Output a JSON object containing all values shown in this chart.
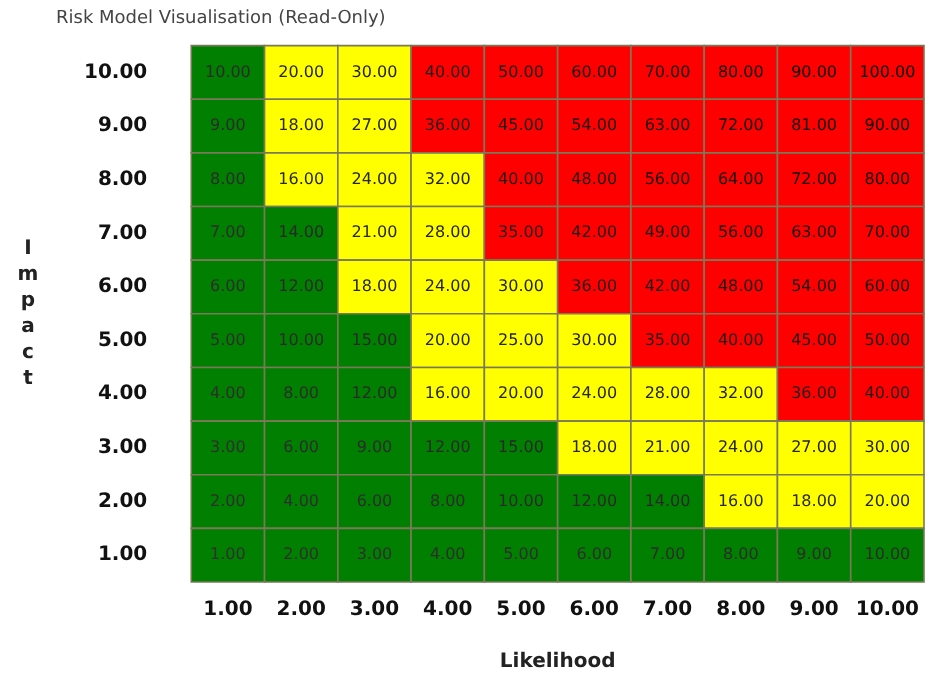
{
  "chart_data": {
    "type": "heatmap",
    "title": "Risk Model Visualisation (Read-Only)",
    "xlabel": "Likelihood",
    "ylabel": "Impact",
    "categories": [
      "1.00",
      "2.00",
      "3.00",
      "4.00",
      "5.00",
      "6.00",
      "7.00",
      "8.00",
      "9.00",
      "10.00"
    ],
    "y_categories": [
      "10.00",
      "9.00",
      "8.00",
      "7.00",
      "6.00",
      "5.00",
      "4.00",
      "3.00",
      "2.00",
      "1.00"
    ],
    "cells": [
      [
        10,
        20,
        30,
        40,
        50,
        60,
        70,
        80,
        90,
        100
      ],
      [
        9,
        18,
        27,
        36,
        45,
        54,
        63,
        72,
        81,
        90
      ],
      [
        8,
        16,
        24,
        32,
        40,
        48,
        56,
        64,
        72,
        80
      ],
      [
        7,
        14,
        21,
        28,
        35,
        42,
        49,
        56,
        63,
        70
      ],
      [
        6,
        12,
        18,
        24,
        30,
        36,
        42,
        48,
        54,
        60
      ],
      [
        5,
        10,
        15,
        20,
        25,
        30,
        35,
        40,
        45,
        50
      ],
      [
        4,
        8,
        12,
        16,
        20,
        24,
        28,
        32,
        36,
        40
      ],
      [
        3,
        6,
        9,
        12,
        15,
        18,
        21,
        24,
        27,
        30
      ],
      [
        2,
        4,
        6,
        8,
        10,
        12,
        14,
        16,
        18,
        20
      ],
      [
        1,
        2,
        3,
        4,
        5,
        6,
        7,
        8,
        9,
        10
      ]
    ],
    "cell_labels": [
      [
        "10.00",
        "20.00",
        "30.00",
        "40.00",
        "50.00",
        "60.00",
        "70.00",
        "80.00",
        "90.00",
        "100.00"
      ],
      [
        "9.00",
        "18.00",
        "27.00",
        "36.00",
        "45.00",
        "54.00",
        "63.00",
        "72.00",
        "81.00",
        "90.00"
      ],
      [
        "8.00",
        "16.00",
        "24.00",
        "32.00",
        "40.00",
        "48.00",
        "56.00",
        "64.00",
        "72.00",
        "80.00"
      ],
      [
        "7.00",
        "14.00",
        "21.00",
        "28.00",
        "35.00",
        "42.00",
        "49.00",
        "56.00",
        "63.00",
        "70.00"
      ],
      [
        "6.00",
        "12.00",
        "18.00",
        "24.00",
        "30.00",
        "36.00",
        "42.00",
        "48.00",
        "54.00",
        "60.00"
      ],
      [
        "5.00",
        "10.00",
        "15.00",
        "20.00",
        "25.00",
        "30.00",
        "35.00",
        "40.00",
        "45.00",
        "50.00"
      ],
      [
        "4.00",
        "8.00",
        "12.00",
        "16.00",
        "20.00",
        "24.00",
        "28.00",
        "32.00",
        "36.00",
        "40.00"
      ],
      [
        "3.00",
        "6.00",
        "9.00",
        "12.00",
        "15.00",
        "18.00",
        "21.00",
        "24.00",
        "27.00",
        "30.00"
      ],
      [
        "2.00",
        "4.00",
        "6.00",
        "8.00",
        "10.00",
        "12.00",
        "14.00",
        "16.00",
        "18.00",
        "20.00"
      ],
      [
        "1.00",
        "2.00",
        "3.00",
        "4.00",
        "5.00",
        "6.00",
        "7.00",
        "8.00",
        "9.00",
        "10.00"
      ]
    ],
    "colors": [
      [
        "#007f00",
        "#ffff00",
        "#ffff00",
        "#ff0000",
        "#ff0000",
        "#ff0000",
        "#ff0000",
        "#ff0000",
        "#ff0000",
        "#ff0000"
      ],
      [
        "#007f00",
        "#ffff00",
        "#ffff00",
        "#ff0000",
        "#ff0000",
        "#ff0000",
        "#ff0000",
        "#ff0000",
        "#ff0000",
        "#ff0000"
      ],
      [
        "#007f00",
        "#ffff00",
        "#ffff00",
        "#ffff00",
        "#ff0000",
        "#ff0000",
        "#ff0000",
        "#ff0000",
        "#ff0000",
        "#ff0000"
      ],
      [
        "#007f00",
        "#007f00",
        "#ffff00",
        "#ffff00",
        "#ff0000",
        "#ff0000",
        "#ff0000",
        "#ff0000",
        "#ff0000",
        "#ff0000"
      ],
      [
        "#007f00",
        "#007f00",
        "#ffff00",
        "#ffff00",
        "#ffff00",
        "#ff0000",
        "#ff0000",
        "#ff0000",
        "#ff0000",
        "#ff0000"
      ],
      [
        "#007f00",
        "#007f00",
        "#007f00",
        "#ffff00",
        "#ffff00",
        "#ffff00",
        "#ff0000",
        "#ff0000",
        "#ff0000",
        "#ff0000"
      ],
      [
        "#007f00",
        "#007f00",
        "#007f00",
        "#ffff00",
        "#ffff00",
        "#ffff00",
        "#ffff00",
        "#ffff00",
        "#ff0000",
        "#ff0000"
      ],
      [
        "#007f00",
        "#007f00",
        "#007f00",
        "#007f00",
        "#007f00",
        "#ffff00",
        "#ffff00",
        "#ffff00",
        "#ffff00",
        "#ffff00"
      ],
      [
        "#007f00",
        "#007f00",
        "#007f00",
        "#007f00",
        "#007f00",
        "#007f00",
        "#007f00",
        "#ffff00",
        "#ffff00",
        "#ffff00"
      ],
      [
        "#007f00",
        "#007f00",
        "#007f00",
        "#007f00",
        "#007f00",
        "#007f00",
        "#007f00",
        "#007f00",
        "#007f00",
        "#007f00"
      ]
    ],
    "data_labels": true,
    "legend": false
  }
}
